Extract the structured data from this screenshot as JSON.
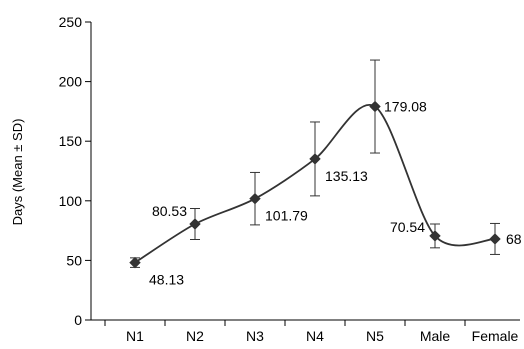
{
  "chart_data": {
    "type": "line",
    "ylabel": "Days (Mean ± SD)",
    "xlabel": "",
    "title": "",
    "ylim": [
      0,
      250
    ],
    "yticks": [
      0,
      50,
      100,
      150,
      200,
      250
    ],
    "grid": false,
    "categories": [
      "N1",
      "N2",
      "N3",
      "N4",
      "N5",
      "Male",
      "Female"
    ],
    "series": [
      {
        "values": [
          48.13,
          80.53,
          101.79,
          135.13,
          179.08,
          70.54,
          68
        ],
        "sd": [
          4,
          13,
          22,
          31,
          39,
          10,
          13
        ],
        "labels": [
          "48.13",
          "80.53",
          "101.79",
          "135.13",
          "179.08",
          "70.54",
          "68"
        ],
        "marker": "diamond",
        "color": "#333333",
        "smooth": true
      }
    ]
  }
}
